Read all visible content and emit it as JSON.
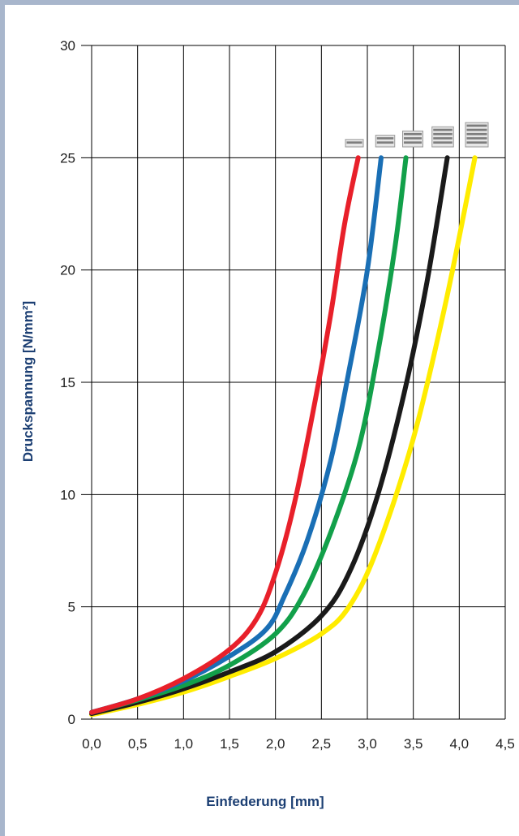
{
  "chart_data": {
    "type": "line",
    "title": "",
    "xlabel": "Einfederung [mm]",
    "ylabel": "Druckspannung  [N/mm²]",
    "xlim": [
      0,
      4.5
    ],
    "ylim": [
      0,
      30
    ],
    "x_ticks": [
      "0,0",
      "0,5",
      "1,0",
      "1,5",
      "2,0",
      "2,5",
      "3,0",
      "3,5",
      "4,0",
      "4,5"
    ],
    "y_ticks": [
      "0",
      "5",
      "10",
      "15",
      "20",
      "25",
      "30"
    ],
    "grid": true,
    "legend": "pictogram icons above curve ends",
    "series": [
      {
        "color": "#e8202a",
        "icon_layers": 1,
        "points": [
          [
            0,
            0.3
          ],
          [
            0.5,
            0.9
          ],
          [
            1.0,
            1.8
          ],
          [
            1.5,
            3.1
          ],
          [
            1.8,
            4.5
          ],
          [
            2.0,
            6.5
          ],
          [
            2.2,
            9.5
          ],
          [
            2.4,
            13.5
          ],
          [
            2.6,
            18.0
          ],
          [
            2.75,
            22.0
          ],
          [
            2.9,
            25.0
          ]
        ]
      },
      {
        "color": "#1a6fb5",
        "icon_layers": 2,
        "points": [
          [
            0,
            0.3
          ],
          [
            0.5,
            0.9
          ],
          [
            1.0,
            1.7
          ],
          [
            1.5,
            2.8
          ],
          [
            1.9,
            4.0
          ],
          [
            2.1,
            5.5
          ],
          [
            2.35,
            8.0
          ],
          [
            2.6,
            11.5
          ],
          [
            2.8,
            15.5
          ],
          [
            3.0,
            20.0
          ],
          [
            3.15,
            25.0
          ]
        ]
      },
      {
        "color": "#12a04a",
        "icon_layers": 3,
        "points": [
          [
            0,
            0.3
          ],
          [
            0.5,
            0.85
          ],
          [
            1.0,
            1.5
          ],
          [
            1.5,
            2.4
          ],
          [
            2.0,
            3.8
          ],
          [
            2.3,
            5.5
          ],
          [
            2.6,
            8.3
          ],
          [
            2.9,
            12.0
          ],
          [
            3.1,
            16.0
          ],
          [
            3.3,
            21.0
          ],
          [
            3.42,
            25.0
          ]
        ]
      },
      {
        "color": "#1a1a1a",
        "icon_layers": 4,
        "points": [
          [
            0,
            0.25
          ],
          [
            0.5,
            0.75
          ],
          [
            1.0,
            1.35
          ],
          [
            1.5,
            2.1
          ],
          [
            2.0,
            3.0
          ],
          [
            2.5,
            4.6
          ],
          [
            2.8,
            6.5
          ],
          [
            3.1,
            9.8
          ],
          [
            3.4,
            14.5
          ],
          [
            3.65,
            19.5
          ],
          [
            3.87,
            25.0
          ]
        ]
      },
      {
        "color": "#ffec00",
        "icon_layers": 5,
        "points": [
          [
            0,
            0.2
          ],
          [
            0.5,
            0.65
          ],
          [
            1.0,
            1.2
          ],
          [
            1.5,
            1.9
          ],
          [
            2.0,
            2.7
          ],
          [
            2.5,
            3.8
          ],
          [
            2.8,
            5.0
          ],
          [
            3.1,
            7.5
          ],
          [
            3.5,
            12.5
          ],
          [
            3.85,
            18.5
          ],
          [
            4.17,
            25.0
          ]
        ]
      }
    ]
  }
}
